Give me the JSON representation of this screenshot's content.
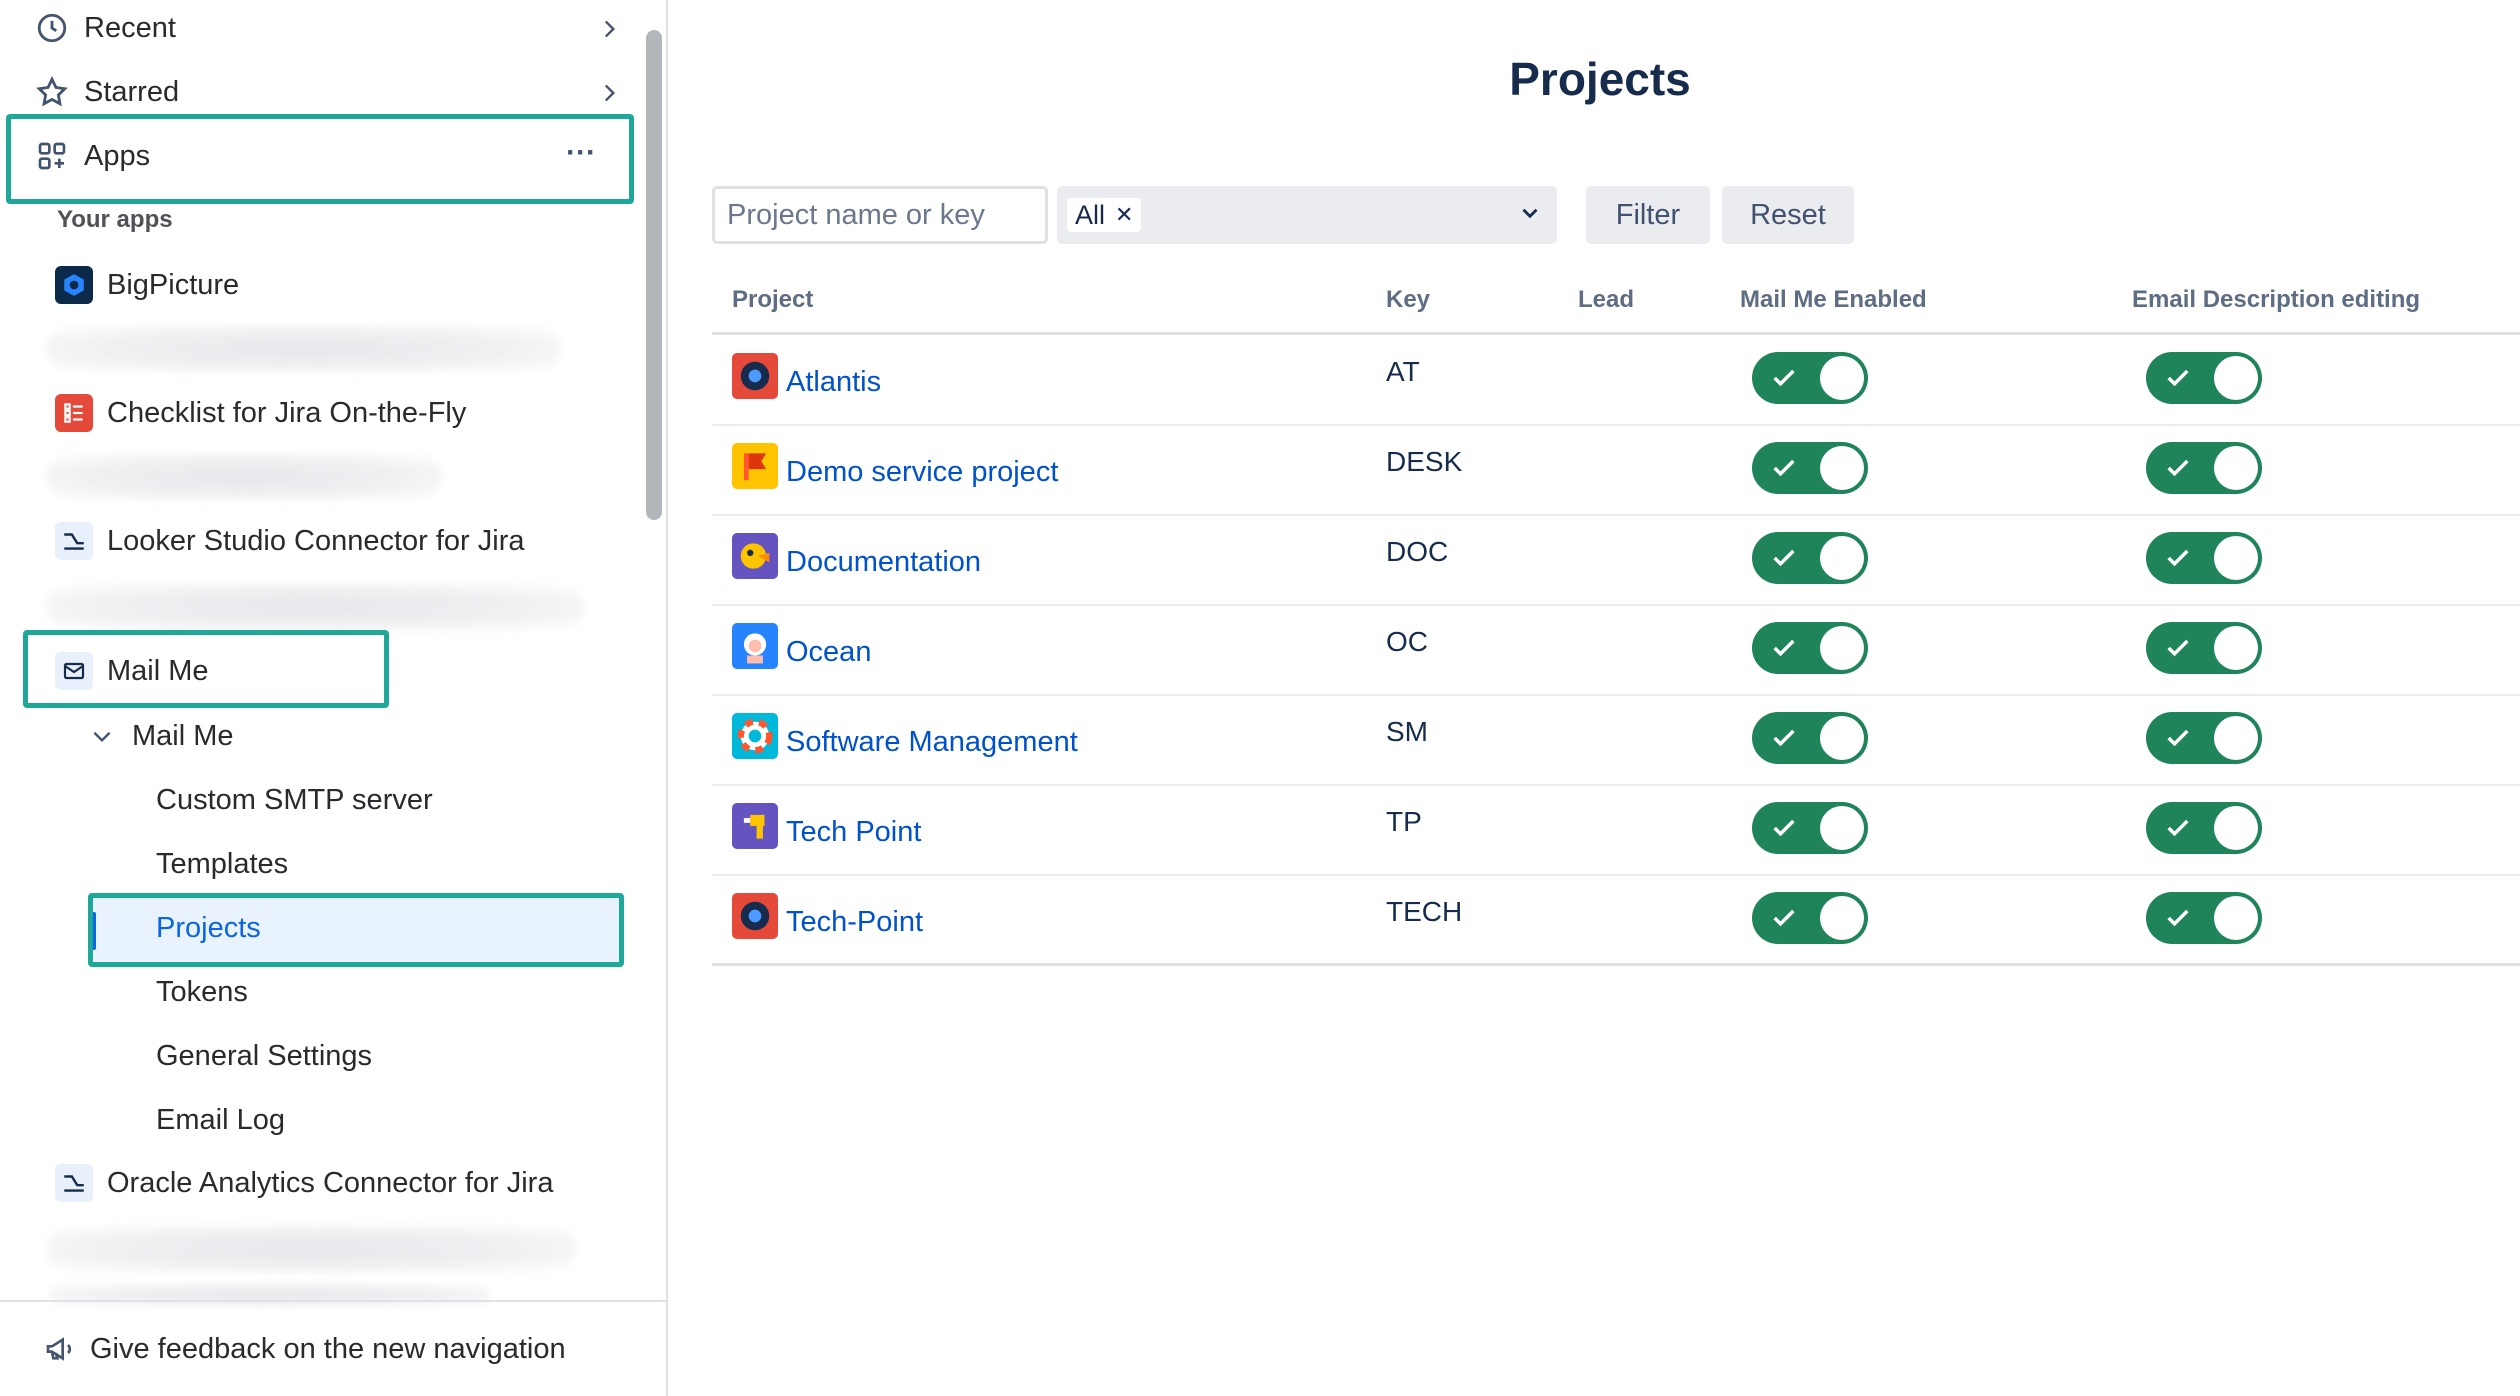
{
  "sidebar": {
    "recent_label": "Recent",
    "starred_label": "Starred",
    "apps_label": "Apps",
    "apps_more": "···",
    "your_apps_label": "Your apps",
    "apps": [
      {
        "label": "BigPicture"
      },
      {
        "label": "Checklist for Jira On-the-Fly"
      },
      {
        "label": "Looker Studio Connector for Jira"
      },
      {
        "label": "Mail Me"
      },
      {
        "label": "Oracle Analytics Connector for Jira"
      }
    ],
    "mail_me_group": "Mail Me",
    "mail_me_items": [
      "Custom SMTP server",
      "Templates",
      "Projects",
      "Tokens",
      "General Settings",
      "Email Log"
    ],
    "feedback_label": "Give feedback on the new navigation",
    "accent": "#1fa89a"
  },
  "main": {
    "title": "Projects",
    "search_placeholder": "Project name or key",
    "filter_tag": "All",
    "filter_button": "Filter",
    "reset_button": "Reset",
    "columns": [
      "Project",
      "Key",
      "Lead",
      "Mail Me Enabled",
      "Email Description editing"
    ],
    "projects": [
      {
        "name": "Atlantis",
        "key": "AT",
        "lead": "",
        "mail_me_enabled": true,
        "email_description_editing": true
      },
      {
        "name": "Demo service project",
        "key": "DESK",
        "lead": "",
        "mail_me_enabled": true,
        "email_description_editing": true
      },
      {
        "name": "Documentation",
        "key": "DOC",
        "lead": "",
        "mail_me_enabled": true,
        "email_description_editing": true
      },
      {
        "name": "Ocean",
        "key": "OC",
        "lead": "",
        "mail_me_enabled": true,
        "email_description_editing": true
      },
      {
        "name": "Software Management",
        "key": "SM",
        "lead": "",
        "mail_me_enabled": true,
        "email_description_editing": true
      },
      {
        "name": "Tech Point",
        "key": "TP",
        "lead": "",
        "mail_me_enabled": true,
        "email_description_editing": true
      },
      {
        "name": "Tech-Point",
        "key": "TECH",
        "lead": "",
        "mail_me_enabled": true,
        "email_description_editing": true
      }
    ],
    "toggle_on_color": "#1f845a",
    "link_color": "#0052cc"
  }
}
